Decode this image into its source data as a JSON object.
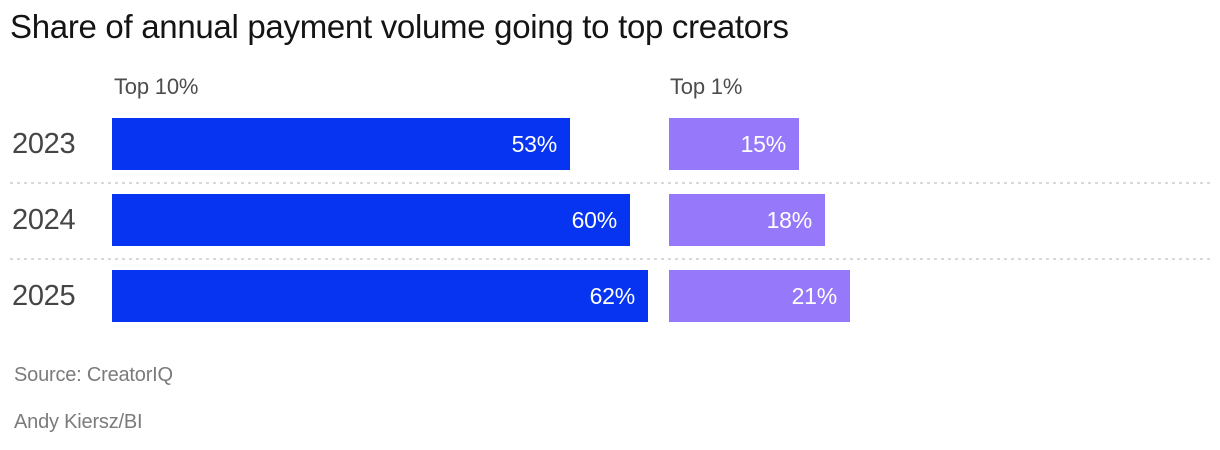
{
  "title": "Share of annual payment volume going to top creators",
  "source_note": "Source: CreatorIQ",
  "byline": "Andy Kiersz/BI",
  "colors": {
    "top10_bar": "#0634f0",
    "top1_bar": "#9679fa",
    "title_text": "#141414",
    "axis_text": "#454545",
    "header_text": "#4d4d4d",
    "bar_value_text": "#ffffff",
    "separator": "#d8d8d8",
    "footnote_text": "#7b7b7b",
    "background": "#ffffff"
  },
  "chart_data": {
    "type": "bar",
    "orientation": "horizontal",
    "title": "Share of annual payment volume going to top creators",
    "categories": [
      "2023",
      "2024",
      "2025"
    ],
    "series": [
      {
        "name": "Top 10%",
        "values": [
          53,
          60,
          62
        ],
        "color": "#0634f0"
      },
      {
        "name": "Top 1%",
        "values": [
          15,
          18,
          21
        ],
        "color": "#9679fa"
      }
    ],
    "value_suffix": "%",
    "value_labels_shown": true,
    "value_label_position": "inside-end",
    "xlim": [
      0,
      62
    ],
    "grid": false,
    "legend_position": "column-headers-above-groups",
    "row_separators": "dotted"
  }
}
